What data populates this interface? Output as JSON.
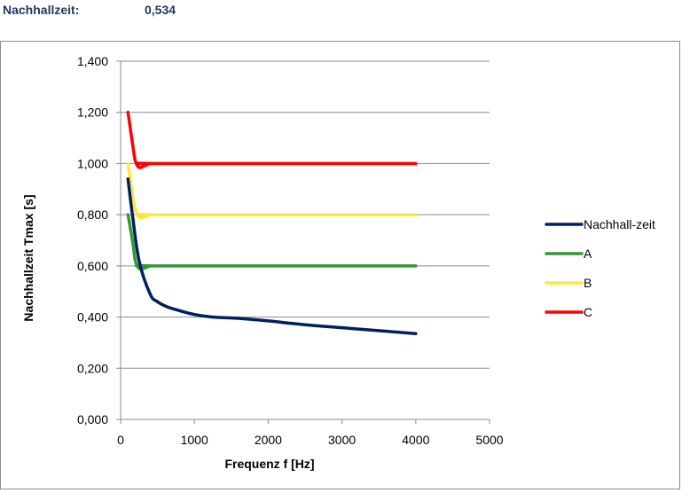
{
  "header": {
    "label": "Nachhallzeit:",
    "value": "0,534"
  },
  "chart_data": {
    "type": "line",
    "title": "",
    "xlabel": "Frequenz f [Hz]",
    "ylabel": "Nachhallzeit Tmax [s]",
    "xlim": [
      0,
      5000
    ],
    "ylim": [
      0,
      1.4
    ],
    "x_ticks": [
      0,
      1000,
      2000,
      3000,
      4000,
      5000
    ],
    "x_tick_labels": [
      "0",
      "1000",
      "2000",
      "3000",
      "4000",
      "5000"
    ],
    "y_ticks": [
      0,
      0.2,
      0.4,
      0.6,
      0.8,
      1.0,
      1.2,
      1.4
    ],
    "y_tick_labels": [
      "0,000",
      "0,200",
      "0,400",
      "0,600",
      "0,800",
      "1,000",
      "1,200",
      "1,400"
    ],
    "grid": "horizontal",
    "legend_position": "right",
    "series": [
      {
        "name": "Nachhall-zeit",
        "color": "#002060",
        "points": [
          [
            100,
            0.94
          ],
          [
            160,
            0.8
          ],
          [
            250,
            0.62
          ],
          [
            400,
            0.49
          ],
          [
            500,
            0.46
          ],
          [
            630,
            0.44
          ],
          [
            800,
            0.425
          ],
          [
            1000,
            0.41
          ],
          [
            1250,
            0.4
          ],
          [
            1600,
            0.395
          ],
          [
            2000,
            0.385
          ],
          [
            2500,
            0.37
          ],
          [
            3150,
            0.355
          ],
          [
            4000,
            0.335
          ]
        ]
      },
      {
        "name": "A",
        "color": "#339933",
        "points": [
          [
            100,
            0.8
          ],
          [
            160,
            0.7
          ],
          [
            200,
            0.62
          ],
          [
            250,
            0.59
          ],
          [
            315,
            0.59
          ],
          [
            400,
            0.6
          ],
          [
            500,
            0.6
          ],
          [
            4000,
            0.6
          ]
        ]
      },
      {
        "name": "B",
        "color": "#ffe83c",
        "points": [
          [
            100,
            1.0
          ],
          [
            160,
            0.88
          ],
          [
            200,
            0.82
          ],
          [
            250,
            0.79
          ],
          [
            315,
            0.79
          ],
          [
            400,
            0.8
          ],
          [
            500,
            0.8
          ],
          [
            4000,
            0.8
          ]
        ]
      },
      {
        "name": "C",
        "color": "#ff0000",
        "points": [
          [
            100,
            1.2
          ],
          [
            160,
            1.08
          ],
          [
            200,
            1.01
          ],
          [
            250,
            0.985
          ],
          [
            315,
            0.99
          ],
          [
            400,
            1.0
          ],
          [
            500,
            1.0
          ],
          [
            4000,
            1.0
          ]
        ]
      }
    ]
  }
}
